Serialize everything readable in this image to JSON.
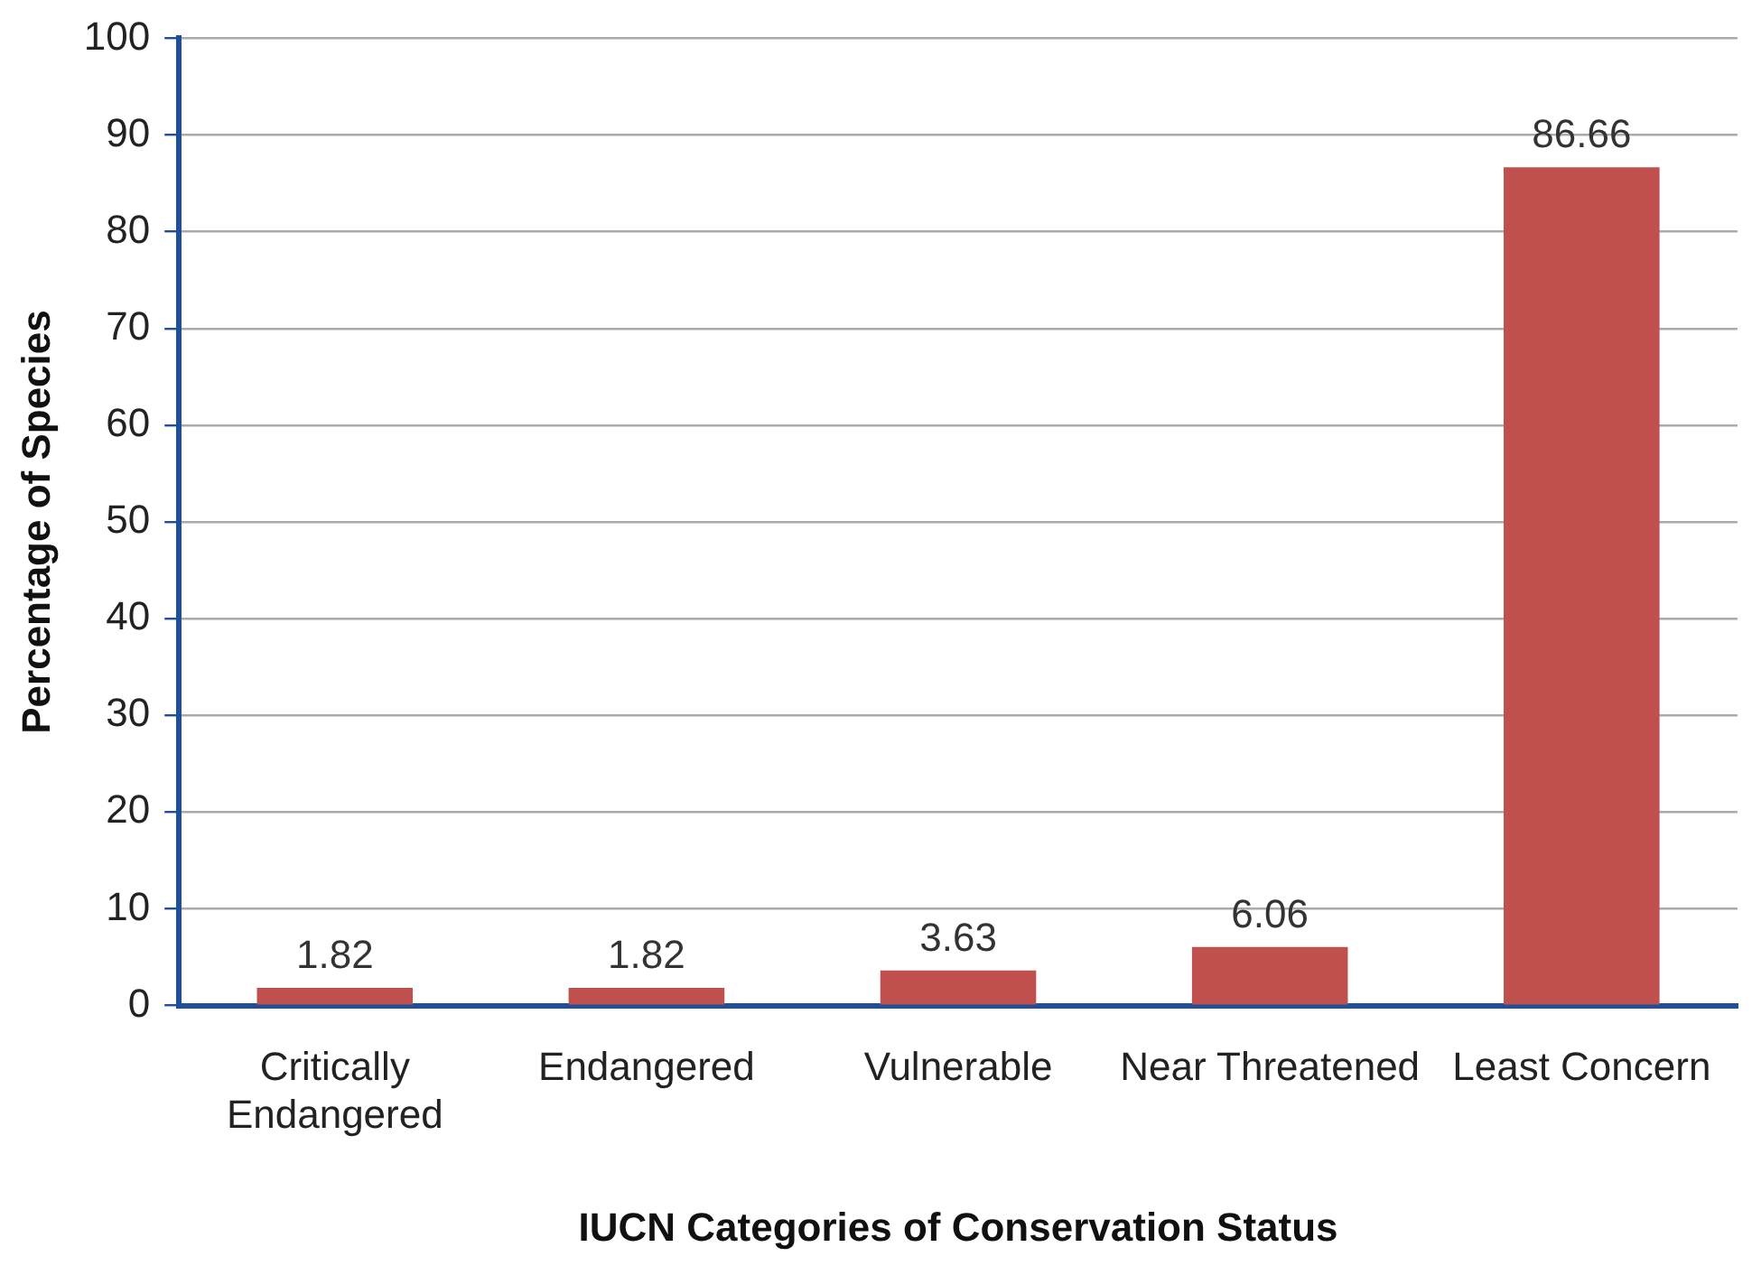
{
  "chart_data": {
    "type": "bar",
    "xlabel": "IUCN Categories of Conservation Status",
    "ylabel": "Percentage of Species",
    "categories": [
      "Critically Endangered",
      "Endangered",
      "Vulnerable",
      "Near Threatened",
      "Least Concern"
    ],
    "values": [
      1.82,
      1.82,
      3.63,
      6.06,
      86.66
    ],
    "color": "#c0504d",
    "ylim": [
      0,
      100
    ],
    "yticks": [
      0,
      10,
      20,
      30,
      40,
      50,
      60,
      70,
      80,
      90,
      100
    ],
    "grid": "y",
    "data_labels": true
  }
}
